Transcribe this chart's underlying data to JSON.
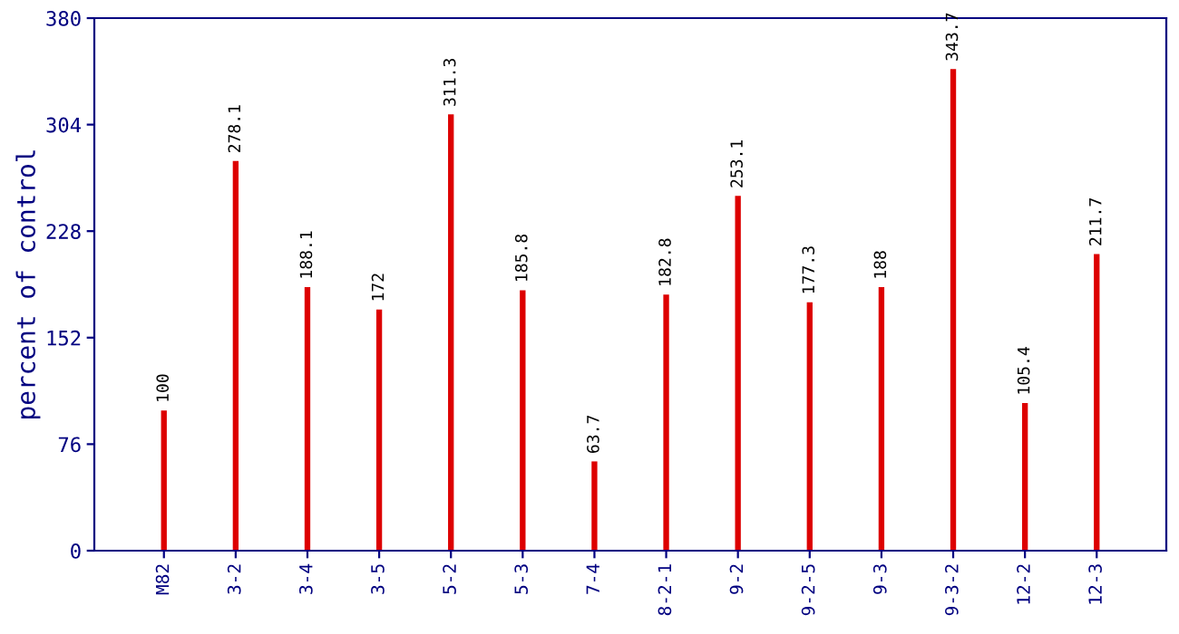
{
  "chart_data": {
    "type": "bar",
    "ylabel": "percent of control",
    "categories": [
      "M82",
      "3-2",
      "3-4",
      "3-5",
      "5-2",
      "5-3",
      "7-4",
      "8-2-1",
      "9-2",
      "9-2-5",
      "9-3",
      "9-3-2",
      "12-2",
      "12-3"
    ],
    "values": [
      100,
      278.1,
      188.1,
      172,
      311.3,
      185.8,
      63.7,
      182.8,
      253.1,
      177.3,
      188,
      343.7,
      105.4,
      211.7
    ],
    "color": "#dd0000",
    "ylim": [
      0,
      380
    ],
    "yticks": [
      0,
      76,
      152,
      228,
      304,
      380
    ],
    "data_labels": true,
    "grid": false
  }
}
